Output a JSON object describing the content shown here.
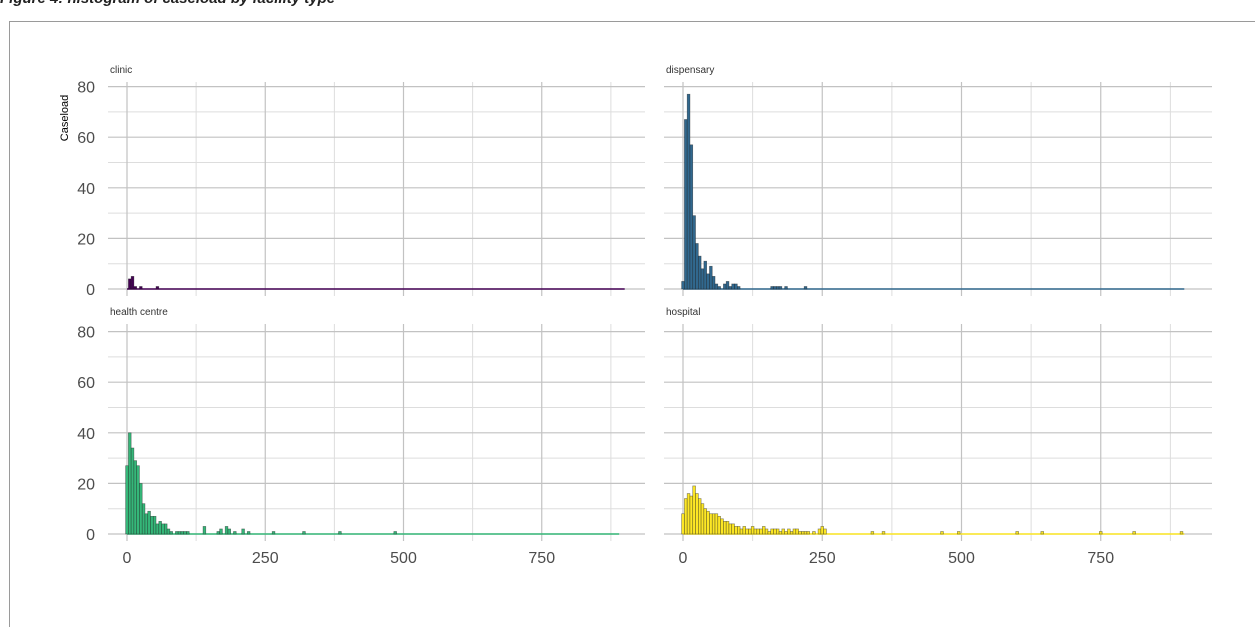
{
  "caption": "Figure 4: histogram of caseload by facility type",
  "chart_data": {
    "type": "bar",
    "subtype": "faceted-histogram",
    "ylabel": "Caseload",
    "xlabel": "",
    "xlim": [
      -20,
      910
    ],
    "ylim": [
      0,
      80
    ],
    "x_ticks": [
      0,
      250,
      500,
      750
    ],
    "x_tick_labels": [
      "0",
      "250",
      "500",
      "750"
    ],
    "y_ticks": [
      0,
      20,
      40,
      60,
      80
    ],
    "y_tick_labels": [
      "0",
      "20",
      "40",
      "60",
      "80"
    ],
    "grid": true,
    "bin_width": 5,
    "panels": [
      {
        "label": "clinic",
        "color": "#440154",
        "baseline_end": 900,
        "bins": [
          [
            5,
            4
          ],
          [
            10,
            5
          ],
          [
            15,
            1
          ],
          [
            25,
            1
          ],
          [
            55,
            1
          ]
        ]
      },
      {
        "label": "dispensary",
        "color": "#31688E",
        "baseline_end": 900,
        "bins": [
          [
            0,
            3
          ],
          [
            5,
            67
          ],
          [
            10,
            77
          ],
          [
            15,
            57
          ],
          [
            20,
            29
          ],
          [
            25,
            18
          ],
          [
            30,
            13
          ],
          [
            35,
            8
          ],
          [
            40,
            11
          ],
          [
            45,
            6
          ],
          [
            50,
            9
          ],
          [
            55,
            5
          ],
          [
            60,
            2
          ],
          [
            65,
            1
          ],
          [
            75,
            2
          ],
          [
            80,
            3
          ],
          [
            85,
            1
          ],
          [
            90,
            2
          ],
          [
            95,
            2
          ],
          [
            100,
            1
          ],
          [
            160,
            1
          ],
          [
            165,
            1
          ],
          [
            170,
            1
          ],
          [
            175,
            1
          ],
          [
            185,
            1
          ],
          [
            220,
            1
          ]
        ]
      },
      {
        "label": "health centre",
        "color": "#35B779",
        "baseline_end": 890,
        "bins": [
          [
            0,
            27
          ],
          [
            5,
            40
          ],
          [
            10,
            34
          ],
          [
            15,
            29
          ],
          [
            20,
            27
          ],
          [
            25,
            20
          ],
          [
            30,
            12
          ],
          [
            35,
            8
          ],
          [
            40,
            9
          ],
          [
            45,
            7
          ],
          [
            50,
            7
          ],
          [
            55,
            4
          ],
          [
            60,
            5
          ],
          [
            65,
            4
          ],
          [
            70,
            4
          ],
          [
            75,
            2
          ],
          [
            80,
            1
          ],
          [
            90,
            1
          ],
          [
            95,
            1
          ],
          [
            100,
            1
          ],
          [
            105,
            1
          ],
          [
            110,
            1
          ],
          [
            140,
            3
          ],
          [
            165,
            1
          ],
          [
            170,
            2
          ],
          [
            180,
            3
          ],
          [
            185,
            2
          ],
          [
            195,
            1
          ],
          [
            210,
            2
          ],
          [
            220,
            1
          ],
          [
            265,
            1
          ],
          [
            320,
            1
          ],
          [
            385,
            1
          ],
          [
            485,
            1
          ]
        ]
      },
      {
        "label": "hospital",
        "color": "#FDE725",
        "baseline_end": 900,
        "bins": [
          [
            0,
            8
          ],
          [
            5,
            14
          ],
          [
            10,
            16
          ],
          [
            15,
            15
          ],
          [
            20,
            19
          ],
          [
            25,
            16
          ],
          [
            30,
            14
          ],
          [
            35,
            12
          ],
          [
            40,
            10
          ],
          [
            45,
            9
          ],
          [
            50,
            8
          ],
          [
            55,
            8
          ],
          [
            60,
            8
          ],
          [
            65,
            7
          ],
          [
            70,
            6
          ],
          [
            75,
            5
          ],
          [
            80,
            5
          ],
          [
            85,
            4
          ],
          [
            90,
            4
          ],
          [
            95,
            3
          ],
          [
            100,
            3
          ],
          [
            105,
            2
          ],
          [
            110,
            3
          ],
          [
            115,
            2
          ],
          [
            120,
            2
          ],
          [
            125,
            3
          ],
          [
            130,
            2
          ],
          [
            135,
            2
          ],
          [
            140,
            2
          ],
          [
            145,
            3
          ],
          [
            150,
            2
          ],
          [
            155,
            1
          ],
          [
            160,
            2
          ],
          [
            165,
            2
          ],
          [
            170,
            2
          ],
          [
            175,
            1
          ],
          [
            180,
            2
          ],
          [
            185,
            1
          ],
          [
            190,
            2
          ],
          [
            195,
            1
          ],
          [
            200,
            2
          ],
          [
            205,
            2
          ],
          [
            210,
            1
          ],
          [
            215,
            1
          ],
          [
            220,
            1
          ],
          [
            225,
            1
          ],
          [
            235,
            1
          ],
          [
            245,
            2
          ],
          [
            250,
            3
          ],
          [
            255,
            2
          ],
          [
            340,
            1
          ],
          [
            360,
            1
          ],
          [
            465,
            1
          ],
          [
            495,
            1
          ],
          [
            600,
            1
          ],
          [
            645,
            1
          ],
          [
            750,
            1
          ],
          [
            810,
            1
          ],
          [
            895,
            1
          ]
        ]
      }
    ]
  }
}
